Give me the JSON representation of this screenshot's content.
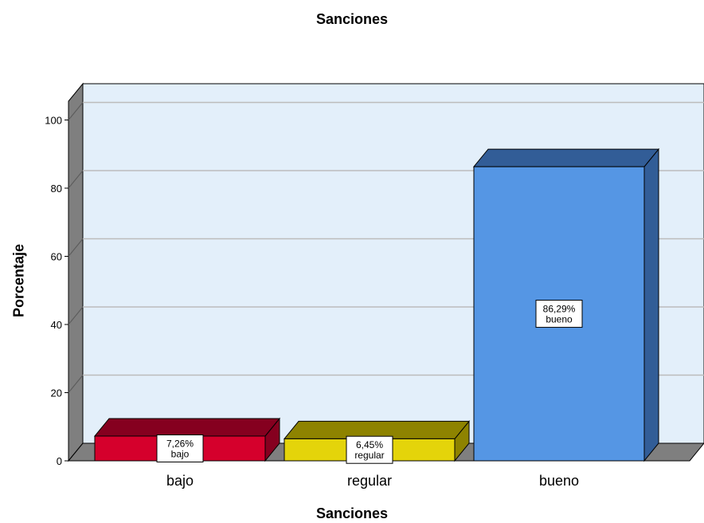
{
  "chart_data": {
    "type": "bar",
    "title": "Sanciones",
    "xlabel": "Sanciones",
    "ylabel": "Porcentaje",
    "categories": [
      "bajo",
      "regular",
      "bueno"
    ],
    "values": [
      7.26,
      6.45,
      86.29
    ],
    "value_labels": [
      "7,26%",
      "6,45%",
      "86,29%"
    ],
    "yticks": [
      "0",
      "20",
      "40",
      "60",
      "80",
      "100"
    ],
    "ytick_values": [
      0,
      20,
      40,
      60,
      80,
      100
    ],
    "ylim": [
      0,
      100
    ],
    "grid": true,
    "legend": "none",
    "colors": {
      "bars_front": [
        "#d5002c",
        "#e4d40a",
        "#5596e4"
      ],
      "bars_top": [
        "#85001f",
        "#8e8300",
        "#325d97"
      ],
      "bars_side": [
        "#85001f",
        "#8e8300",
        "#325d97"
      ],
      "plot_background": "#e3effa",
      "walls": "#7f7f7f",
      "gridlines": "#bcbcbc"
    }
  }
}
